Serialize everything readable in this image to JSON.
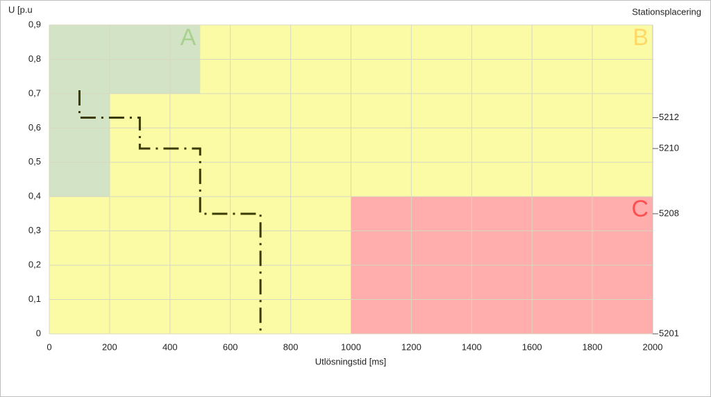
{
  "chart_data": {
    "type": "line",
    "ylabel": "U [p.u",
    "xlabel": "Utlösningstid [ms]",
    "y2label": "Stationsplacering",
    "xlim": [
      0,
      2000
    ],
    "ylim": [
      0,
      0.9
    ],
    "xticks": [
      0,
      200,
      400,
      600,
      800,
      1000,
      1200,
      1400,
      1600,
      1800,
      2000
    ],
    "yticks": [
      0,
      {
        "value": 0.1,
        "label": "0,1"
      },
      {
        "value": 0.2,
        "label": "0,2"
      },
      {
        "value": 0.3,
        "label": "0,3"
      },
      {
        "value": 0.4,
        "label": "0,4"
      },
      {
        "value": 0.5,
        "label": "0,5"
      },
      {
        "value": 0.6,
        "label": "0,6"
      },
      {
        "value": 0.7,
        "label": "0,7"
      },
      {
        "value": 0.8,
        "label": "0,8"
      },
      {
        "value": 0.9,
        "label": "0,9"
      }
    ],
    "grid": true,
    "regions": [
      {
        "label": "B",
        "color": "#fbfba6",
        "label_color": "#ffd966",
        "rects": [
          [
            0,
            2000,
            0,
            0.9
          ]
        ]
      },
      {
        "label": "A",
        "color": "#d2e3c6",
        "label_color": "#a9d18e",
        "rects": [
          [
            0,
            500,
            0.7,
            0.9
          ],
          [
            0,
            200,
            0.4,
            0.7
          ]
        ]
      },
      {
        "label": "C",
        "color": "#ffadad",
        "label_color": "#ff5050",
        "rects": [
          [
            1000,
            2000,
            0,
            0.4
          ]
        ]
      }
    ],
    "series": [
      {
        "color": "#3b3b00",
        "x": [
          100,
          100,
          300,
          300,
          500,
          500,
          700,
          700
        ],
        "values": [
          0.71,
          0.63,
          0.63,
          0.54,
          0.54,
          0.35,
          0.35,
          0
        ]
      }
    ],
    "stations": [
      {
        "name": "5212",
        "y": 0.63
      },
      {
        "name": "5210",
        "y": 0.54
      },
      {
        "name": "5208",
        "y": 0.35
      },
      {
        "name": "5201",
        "y": 0
      }
    ]
  }
}
